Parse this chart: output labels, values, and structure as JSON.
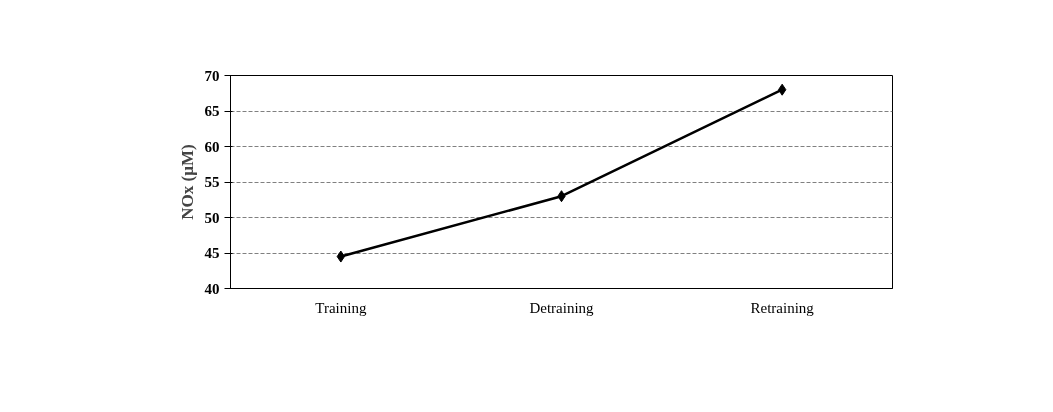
{
  "chart_data": {
    "type": "line",
    "ylabel": "NOx (µM)",
    "categories": [
      "Training",
      "Detraining",
      "Retraining"
    ],
    "series": [
      {
        "color": "#000000",
        "values": [
          44.5,
          53,
          68
        ]
      }
    ],
    "ylim": [
      40,
      70
    ],
    "yticks": [
      40,
      45,
      50,
      55,
      60,
      65,
      70
    ],
    "grid": "y",
    "marker": "diamond",
    "line_style": "solid"
  }
}
